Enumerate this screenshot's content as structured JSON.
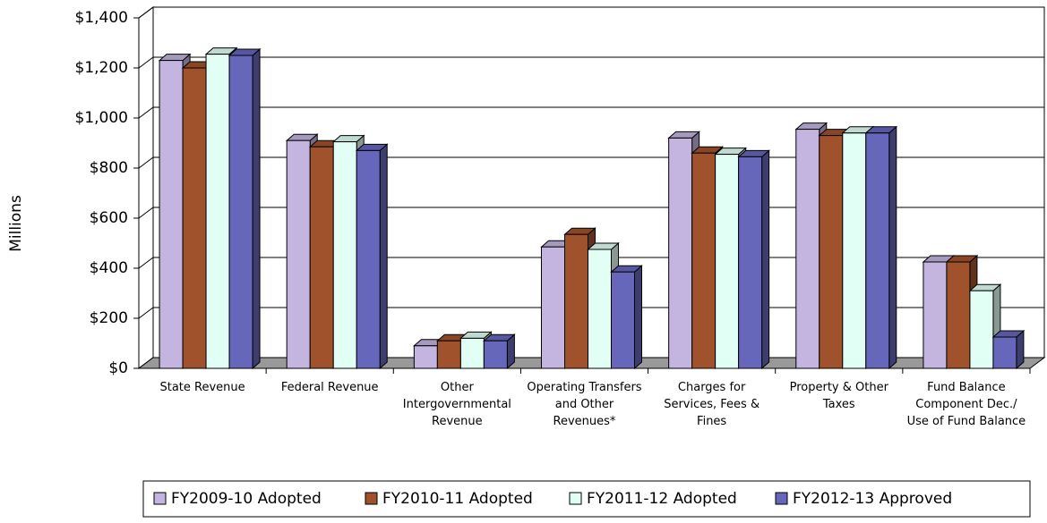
{
  "chart_data": {
    "type": "bar3d",
    "y_axis_label": "Millions",
    "categories": [
      "State Revenue",
      "Federal Revenue",
      "Other Intergovernmental Revenue",
      "Operating Transfers and Other Revenues*",
      "Charges for Services, Fees & Fines",
      "Property & Other Taxes",
      "Fund Balance Component Dec./ Use of Fund Balance"
    ],
    "series": [
      {
        "name": "FY2009-10 Adopted",
        "color": "#c3b4e0",
        "values": [
          1230,
          910,
          90,
          485,
          920,
          955,
          425
        ]
      },
      {
        "name": "FY2010-11 Adopted",
        "color": "#a0522d",
        "values": [
          1200,
          885,
          110,
          535,
          860,
          930,
          425
        ]
      },
      {
        "name": "FY2011-12 Adopted",
        "color": "#e2fff6",
        "values": [
          1255,
          905,
          120,
          475,
          855,
          940,
          310
        ]
      },
      {
        "name": "FY2012-13 Approved",
        "color": "#6666bb",
        "values": [
          1250,
          870,
          110,
          385,
          845,
          940,
          125
        ]
      }
    ],
    "ylim": [
      0,
      1400
    ],
    "yticks": [
      {
        "value": 0,
        "label": "$0"
      },
      {
        "value": 200,
        "label": "$200"
      },
      {
        "value": 400,
        "label": "$400"
      },
      {
        "value": 600,
        "label": "$600"
      },
      {
        "value": 800,
        "label": "$800"
      },
      {
        "value": 1000,
        "label": "$1,000"
      },
      {
        "value": 1200,
        "label": "$1,200"
      },
      {
        "value": 1400,
        "label": "$1,400"
      }
    ],
    "grid": true,
    "legend": "bottom"
  }
}
